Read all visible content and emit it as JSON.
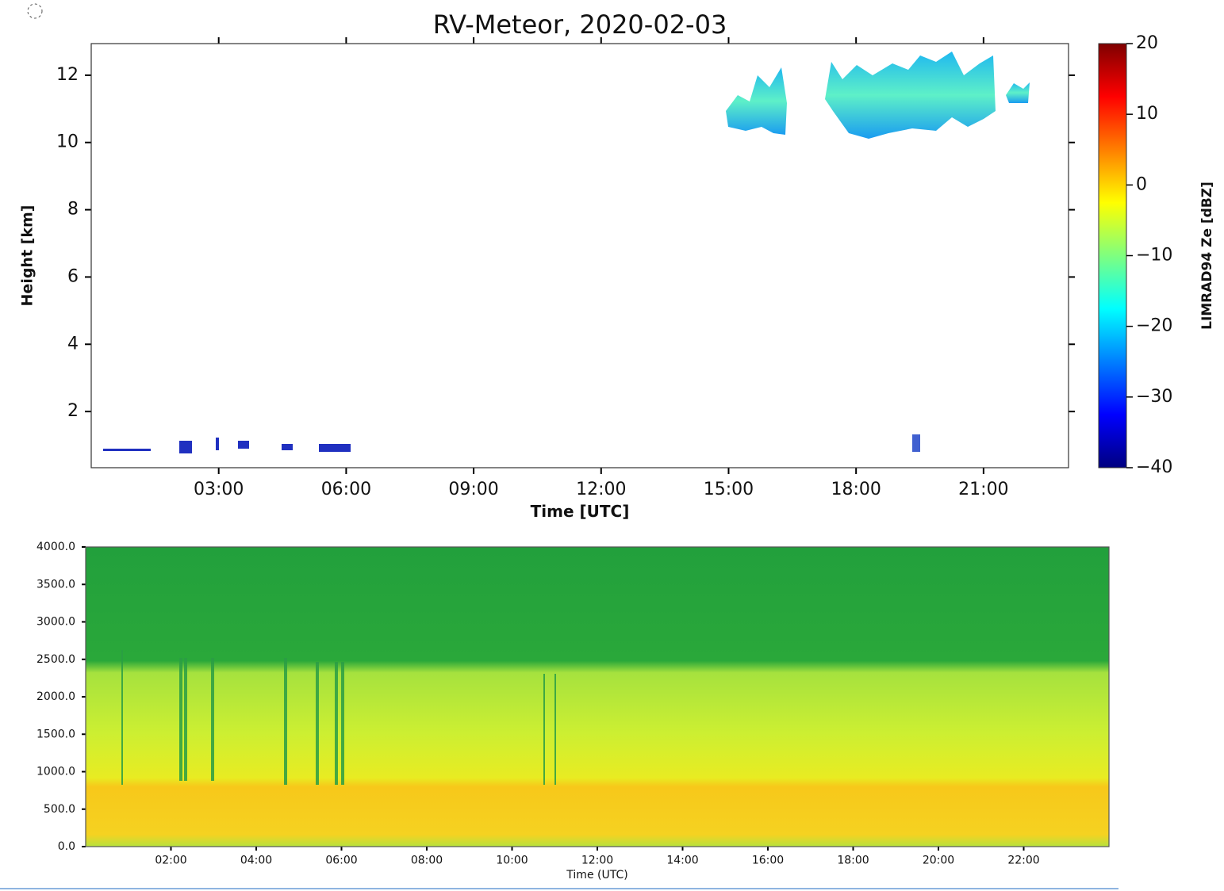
{
  "chart_data": [
    {
      "type": "heatmap",
      "title": "RV-Meteor, 2020-02-03",
      "x_label": "Time [UTC]",
      "y_label": "Height [km]",
      "xlim": [
        0,
        23
      ],
      "xticks": [
        {
          "value": 3,
          "label": "03:00"
        },
        {
          "value": 6,
          "label": "06:00"
        },
        {
          "value": 9,
          "label": "09:00"
        },
        {
          "value": 12,
          "label": "12:00"
        },
        {
          "value": 15,
          "label": "15:00"
        },
        {
          "value": 18,
          "label": "18:00"
        },
        {
          "value": 21,
          "label": "21:00"
        }
      ],
      "ylim": [
        0.33,
        12.94
      ],
      "yticks": [
        2,
        4,
        6,
        8,
        10,
        12
      ],
      "colorbar": {
        "label": "LIMRAD94 Ze [dBZ]",
        "lim": [
          -40,
          20
        ],
        "ticks": [
          {
            "value": -40,
            "label": "−40"
          },
          {
            "value": -30,
            "label": "−30"
          },
          {
            "value": -20,
            "label": "−20"
          },
          {
            "value": -10,
            "label": "−10"
          },
          0,
          10,
          20
        ],
        "colors": [
          "#00007f",
          "#0000ff",
          "#007fff",
          "#00ffff",
          "#7fff7f",
          "#ffff00",
          "#ff7f00",
          "#ff0000",
          "#7f0000"
        ]
      }
    },
    {
      "type": "heatmap",
      "x_label": "Time (UTC)",
      "xlim": [
        0,
        24
      ],
      "xticks": [
        {
          "value": 2,
          "label": "02:00"
        },
        {
          "value": 4,
          "label": "04:00"
        },
        {
          "value": 6,
          "label": "06:00"
        },
        {
          "value": 8,
          "label": "08:00"
        },
        {
          "value": 10,
          "label": "10:00"
        },
        {
          "value": 12,
          "label": "12:00"
        },
        {
          "value": 14,
          "label": "14:00"
        },
        {
          "value": 16,
          "label": "16:00"
        },
        {
          "value": 18,
          "label": "18:00"
        },
        {
          "value": 20,
          "label": "20:00"
        },
        {
          "value": 22,
          "label": "22:00"
        }
      ],
      "ylim": [
        0,
        4000
      ],
      "yticks": [
        {
          "value": 0,
          "label": "0.0"
        },
        {
          "value": 500,
          "label": "500.0"
        },
        {
          "value": 1000,
          "label": "1000.0"
        },
        {
          "value": 1500,
          "label": "1500.0"
        },
        {
          "value": 2000,
          "label": "2000.0"
        },
        {
          "value": 2500,
          "label": "2500.0"
        },
        {
          "value": 3000,
          "label": "3000.0"
        },
        {
          "value": 3500,
          "label": "3500.0"
        },
        {
          "value": 4000,
          "label": "4000.0"
        }
      ]
    }
  ]
}
